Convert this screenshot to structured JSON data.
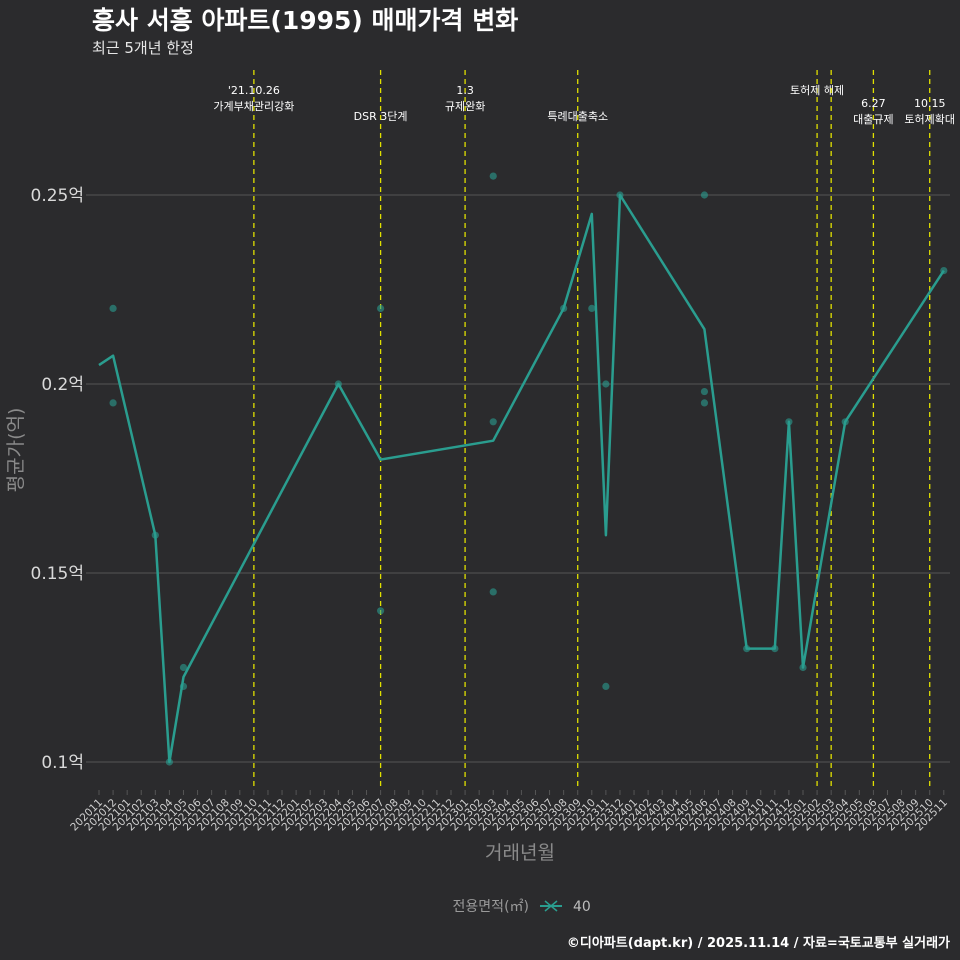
{
  "chart_data": {
    "type": "line",
    "title": "흥사 서흥 아파트(1995) 매매가격 변화",
    "subtitle": "최근 5개년 한정",
    "xlabel": "거래년월",
    "ylabel": "평균가(억)",
    "y_unit_suffix": "억",
    "ylim": [
      0.09,
      0.275
    ],
    "yticks": [
      0.1,
      0.15,
      0.2,
      0.25
    ],
    "ytick_labels": [
      "0.1억",
      "0.15억",
      "0.2억",
      "0.25억"
    ],
    "grid": "horizontal",
    "legend": {
      "title": "전용면적(㎡)",
      "position": "bottom",
      "entries": [
        "40"
      ]
    },
    "colors": {
      "series": "#2a9d8f",
      "event_line": "#e0e000",
      "grid": "#555555",
      "background": "#2b2b2d"
    },
    "months": [
      "202011",
      "202012",
      "202101",
      "202102",
      "202103",
      "202104",
      "202105",
      "202106",
      "202107",
      "202108",
      "202109",
      "202110",
      "202111",
      "202112",
      "202201",
      "202202",
      "202203",
      "202204",
      "202205",
      "202206",
      "202207",
      "202208",
      "202209",
      "202210",
      "202211",
      "202212",
      "202301",
      "202302",
      "202303",
      "202304",
      "202305",
      "202306",
      "202307",
      "202308",
      "202309",
      "202310",
      "202311",
      "202312",
      "202401",
      "202402",
      "202403",
      "202404",
      "202405",
      "202406",
      "202407",
      "202408",
      "202409",
      "202410",
      "202411",
      "202412",
      "202501",
      "202502",
      "202503",
      "202504",
      "202505",
      "202506",
      "202507",
      "202508",
      "202509",
      "202510",
      "202511"
    ],
    "series": [
      {
        "name": "40",
        "line": [
          {
            "m": "202011",
            "v": 0.205
          },
          {
            "m": "202012",
            "v": 0.2075
          },
          {
            "m": "202103",
            "v": 0.16
          },
          {
            "m": "202104",
            "v": 0.1
          },
          {
            "m": "202105",
            "v": 0.1225
          },
          {
            "m": "202204",
            "v": 0.2
          },
          {
            "m": "202207",
            "v": 0.18
          },
          {
            "m": "202303",
            "v": 0.185
          },
          {
            "m": "202308",
            "v": 0.22
          },
          {
            "m": "202310",
            "v": 0.245
          },
          {
            "m": "202311",
            "v": 0.16
          },
          {
            "m": "202312",
            "v": 0.25
          },
          {
            "m": "202406",
            "v": 0.2145
          },
          {
            "m": "202409",
            "v": 0.13
          },
          {
            "m": "202411",
            "v": 0.13
          },
          {
            "m": "202412",
            "v": 0.19
          },
          {
            "m": "202501",
            "v": 0.125
          },
          {
            "m": "202504",
            "v": 0.19
          },
          {
            "m": "202511",
            "v": 0.23
          }
        ],
        "points": [
          {
            "m": "202012",
            "v": 0.22
          },
          {
            "m": "202012",
            "v": 0.195
          },
          {
            "m": "202103",
            "v": 0.16
          },
          {
            "m": "202104",
            "v": 0.1
          },
          {
            "m": "202105",
            "v": 0.125
          },
          {
            "m": "202105",
            "v": 0.12
          },
          {
            "m": "202204",
            "v": 0.2
          },
          {
            "m": "202207",
            "v": 0.22
          },
          {
            "m": "202207",
            "v": 0.14
          },
          {
            "m": "202303",
            "v": 0.255
          },
          {
            "m": "202303",
            "v": 0.19
          },
          {
            "m": "202303",
            "v": 0.145
          },
          {
            "m": "202308",
            "v": 0.22
          },
          {
            "m": "202310",
            "v": 0.22
          },
          {
            "m": "202311",
            "v": 0.2
          },
          {
            "m": "202311",
            "v": 0.12
          },
          {
            "m": "202312",
            "v": 0.25
          },
          {
            "m": "202406",
            "v": 0.25
          },
          {
            "m": "202406",
            "v": 0.198
          },
          {
            "m": "202406",
            "v": 0.195
          },
          {
            "m": "202409",
            "v": 0.13
          },
          {
            "m": "202411",
            "v": 0.13
          },
          {
            "m": "202412",
            "v": 0.19
          },
          {
            "m": "202501",
            "v": 0.125
          },
          {
            "m": "202504",
            "v": 0.19
          },
          {
            "m": "202511",
            "v": 0.23
          }
        ]
      }
    ],
    "events": [
      {
        "m": "202110",
        "lines": [
          "'21.10.26",
          "가계부채관리강화"
        ],
        "row": 0
      },
      {
        "m": "202207",
        "lines": [
          "DSR 3단계"
        ],
        "row": 1
      },
      {
        "m": "202301",
        "lines": [
          "1.3",
          "규제완화"
        ],
        "row": 0
      },
      {
        "m": "202309",
        "lines": [
          "특례대출축소"
        ],
        "row": 1
      },
      {
        "m": "202502",
        "lines": [
          "토허제 해제"
        ],
        "row": 0
      },
      {
        "m": "202503",
        "lines": [],
        "row": 0
      },
      {
        "m": "202506",
        "lines": [
          "6.27",
          "대출규제"
        ],
        "row": 0.5
      },
      {
        "m": "202510",
        "lines": [
          "10.15",
          "토허제확대"
        ],
        "row": 0.5
      }
    ]
  },
  "caption": "©디아파트(dapt.kr) / 2025.11.14 / 자료=국토교통부 실거래가"
}
